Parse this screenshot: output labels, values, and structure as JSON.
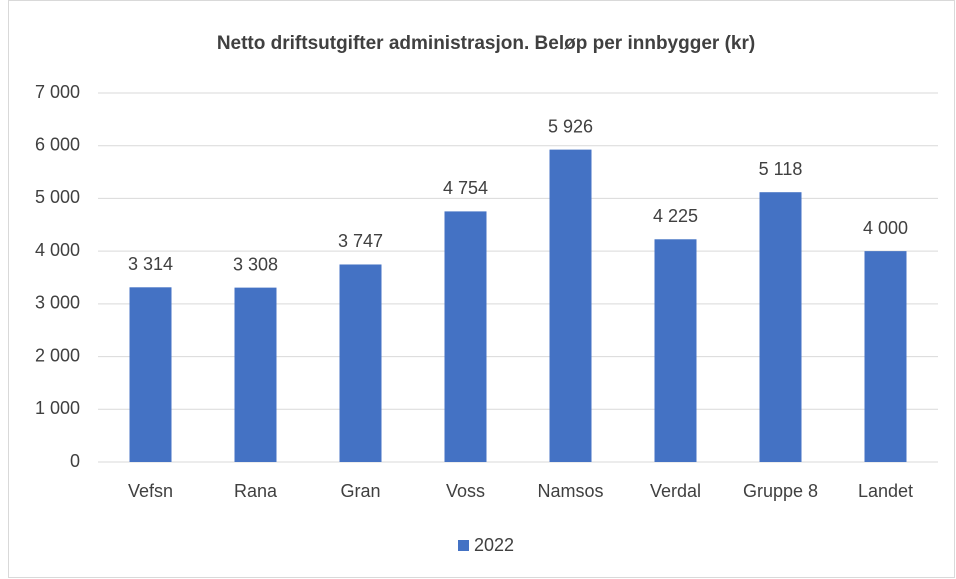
{
  "chart_data": {
    "type": "bar",
    "title": "Netto driftsutgifter administrasjon.  Beløp per innbygger (kr)",
    "categories": [
      "Vefsn",
      "Rana",
      "Gran",
      "Voss",
      "Namsos",
      "Verdal",
      "Gruppe 8",
      "Landet"
    ],
    "series": [
      {
        "name": "2022",
        "color": "#4472c4",
        "values": [
          3314,
          3308,
          3747,
          4754,
          5926,
          4225,
          5118,
          4000
        ],
        "value_labels": [
          "3 314",
          "3 308",
          "3 747",
          "4 754",
          "5 926",
          "4 225",
          "5 118",
          "4 000"
        ]
      }
    ],
    "ylim": [
      0,
      7000
    ],
    "yticks": [
      0,
      {
        "value": 1000,
        "label": "1 000"
      },
      {
        "value": 2000,
        "label": "2 000"
      },
      {
        "value": 3000,
        "label": "3 000"
      },
      {
        "value": 4000,
        "label": "4 000"
      },
      {
        "value": 5000,
        "label": "5 000"
      },
      {
        "value": 6000,
        "label": "6 000"
      },
      {
        "value": 7000,
        "label": "7 000"
      }
    ],
    "grid": true,
    "legend": "bottom"
  }
}
